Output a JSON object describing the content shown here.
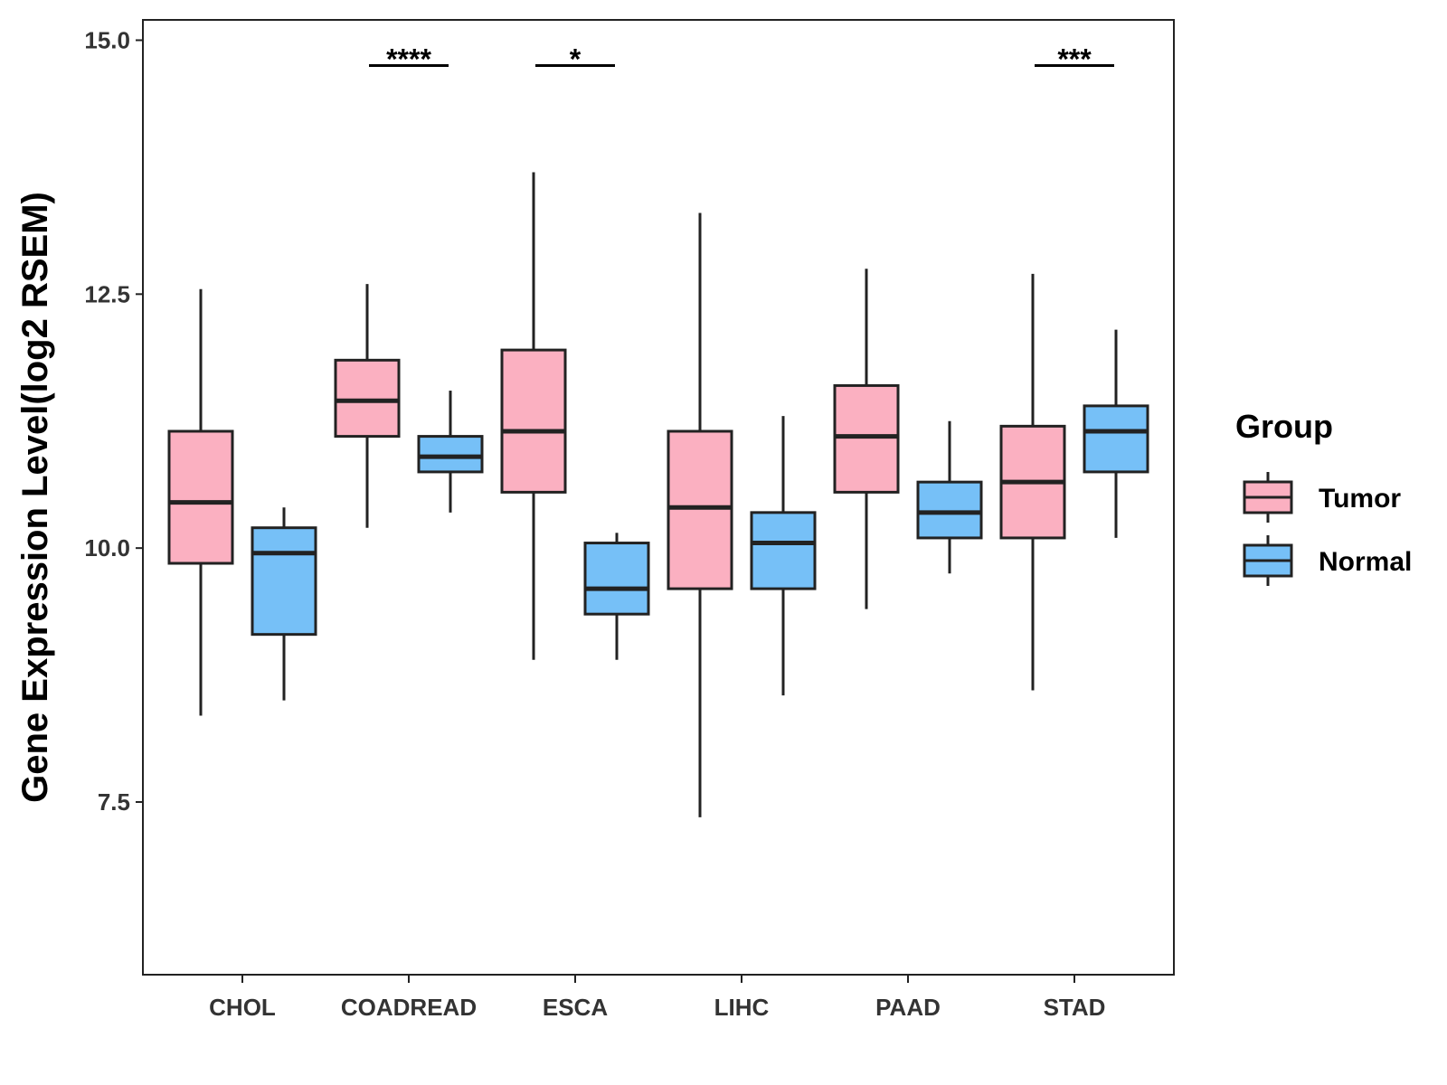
{
  "chart_data": {
    "type": "boxplot",
    "ylabel": "Gene Expression Level(log2 RSEM)",
    "xlabel": "",
    "ylim": [
      5.8,
      15.2
    ],
    "yticks": [
      7.5,
      10.0,
      12.5,
      15.0
    ],
    "ytick_labels": [
      "7.5",
      "10.0",
      "12.5",
      "15.0"
    ],
    "grid": false,
    "categories": [
      "CHOL",
      "COADREAD",
      "ESCA",
      "LIHC",
      "PAAD",
      "STAD"
    ],
    "legend": {
      "title": "Group",
      "position": "right",
      "entries": [
        {
          "name": "Tumor",
          "color": "#fbb0c1"
        },
        {
          "name": "Normal",
          "color": "#76c0f7"
        }
      ]
    },
    "series": [
      {
        "name": "Tumor",
        "color": "#fbb0c1",
        "boxes": [
          {
            "lower_whisker": 8.35,
            "q1": 9.85,
            "median": 10.45,
            "q3": 11.15,
            "upper_whisker": 12.55
          },
          {
            "lower_whisker": 10.2,
            "q1": 11.1,
            "median": 11.45,
            "q3": 11.85,
            "upper_whisker": 12.6
          },
          {
            "lower_whisker": 8.9,
            "q1": 10.55,
            "median": 11.15,
            "q3": 11.95,
            "upper_whisker": 13.7
          },
          {
            "lower_whisker": 7.35,
            "q1": 9.6,
            "median": 10.4,
            "q3": 11.15,
            "upper_whisker": 13.3
          },
          {
            "lower_whisker": 9.4,
            "q1": 10.55,
            "median": 11.1,
            "q3": 11.6,
            "upper_whisker": 12.75
          },
          {
            "lower_whisker": 8.6,
            "q1": 10.1,
            "median": 10.65,
            "q3": 11.2,
            "upper_whisker": 12.7
          }
        ]
      },
      {
        "name": "Normal",
        "color": "#76c0f7",
        "boxes": [
          {
            "lower_whisker": 8.5,
            "q1": 9.15,
            "median": 9.95,
            "q3": 10.2,
            "upper_whisker": 10.4
          },
          {
            "lower_whisker": 10.35,
            "q1": 10.75,
            "median": 10.9,
            "q3": 11.1,
            "upper_whisker": 11.55
          },
          {
            "lower_whisker": 8.9,
            "q1": 9.35,
            "median": 9.6,
            "q3": 10.05,
            "upper_whisker": 10.15
          },
          {
            "lower_whisker": 8.55,
            "q1": 9.6,
            "median": 10.05,
            "q3": 10.35,
            "upper_whisker": 11.3
          },
          {
            "lower_whisker": 9.75,
            "q1": 10.1,
            "median": 10.35,
            "q3": 10.65,
            "upper_whisker": 11.25
          },
          {
            "lower_whisker": 10.1,
            "q1": 10.75,
            "median": 11.15,
            "q3": 11.4,
            "upper_whisker": 12.15
          }
        ]
      }
    ],
    "significance": [
      {
        "category": "COADREAD",
        "label": "****",
        "y": 14.75
      },
      {
        "category": "ESCA",
        "label": "*",
        "y": 14.75
      },
      {
        "category": "STAD",
        "label": "***",
        "y": 14.75
      }
    ]
  }
}
